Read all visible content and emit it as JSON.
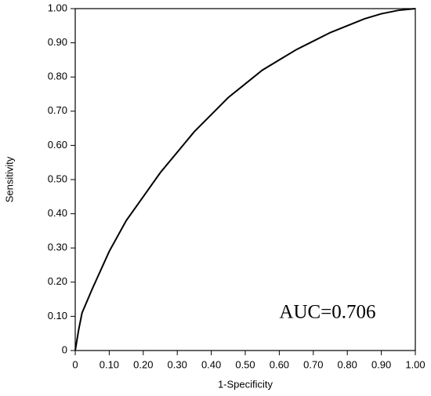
{
  "chart_data": {
    "type": "line",
    "xlabel": "1-Specificity",
    "ylabel": "Sensitivity",
    "annotation": "AUC=0.706",
    "x": [
      0,
      0.01,
      0.02,
      0.05,
      0.1,
      0.15,
      0.2,
      0.25,
      0.3,
      0.35,
      0.4,
      0.45,
      0.5,
      0.55,
      0.6,
      0.65,
      0.7,
      0.75,
      0.8,
      0.85,
      0.9,
      0.95,
      1.0
    ],
    "values": [
      0,
      0.06,
      0.11,
      0.18,
      0.29,
      0.38,
      0.45,
      0.52,
      0.58,
      0.64,
      0.69,
      0.74,
      0.78,
      0.82,
      0.85,
      0.88,
      0.905,
      0.93,
      0.95,
      0.97,
      0.985,
      0.995,
      1.0
    ],
    "color": "#000000",
    "xlim": [
      0,
      1
    ],
    "ylim": [
      0,
      1
    ],
    "xticks": [
      0,
      {
        "value": 0.1,
        "label": "0.10"
      },
      {
        "value": 0.2,
        "label": "0.20"
      },
      {
        "value": 0.3,
        "label": "0.30"
      },
      {
        "value": 0.4,
        "label": "0.40"
      },
      {
        "value": 0.5,
        "label": "0.50"
      },
      {
        "value": 0.6,
        "label": "0.60"
      },
      {
        "value": 0.7,
        "label": "0.70"
      },
      {
        "value": 0.8,
        "label": "0.80"
      },
      {
        "value": 0.9,
        "label": "0.90"
      },
      {
        "value": 1,
        "label": "1.00"
      }
    ],
    "yticks": [
      0,
      {
        "value": 0.1,
        "label": "0.10"
      },
      {
        "value": 0.2,
        "label": "0.20"
      },
      {
        "value": 0.3,
        "label": "0.30"
      },
      {
        "value": 0.4,
        "label": "0.40"
      },
      {
        "value": 0.5,
        "label": "0.50"
      },
      {
        "value": 0.6,
        "label": "0.60"
      },
      {
        "value": 0.7,
        "label": "0.70"
      },
      {
        "value": 0.8,
        "label": "0.80"
      },
      {
        "value": 0.9,
        "label": "0.90"
      },
      {
        "value": 1,
        "label": "1.00"
      }
    ],
    "grid": false
  }
}
